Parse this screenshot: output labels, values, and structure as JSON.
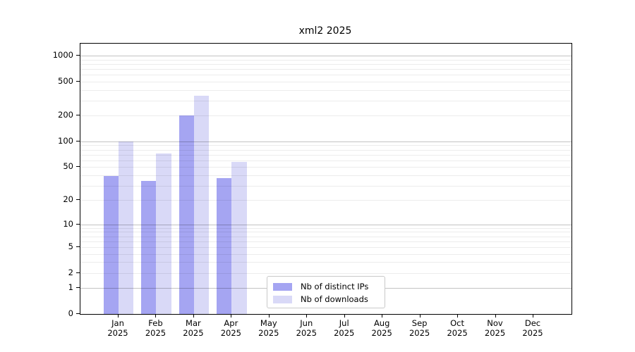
{
  "chart_data": {
    "type": "bar",
    "title": "xml2 2025",
    "year_label": "2025",
    "months": [
      "Jan",
      "Feb",
      "Mar",
      "Apr",
      "May",
      "Jun",
      "Jul",
      "Aug",
      "Sep",
      "Oct",
      "Nov",
      "Dec"
    ],
    "series": [
      {
        "name": "Nb of distinct IPs",
        "color": "#a5a5f2",
        "values": [
          39,
          34,
          200,
          37,
          0,
          0,
          0,
          0,
          0,
          0,
          0,
          0
        ]
      },
      {
        "name": "Nb of downloads",
        "color": "#d9d9f7",
        "values": [
          100,
          72,
          340,
          57,
          0,
          0,
          0,
          0,
          0,
          0,
          0,
          0
        ]
      }
    ],
    "yscale": "log1p",
    "ytick_values": [
      0,
      1,
      2,
      5,
      10,
      20,
      50,
      100,
      200,
      500,
      1000
    ],
    "ylim": [
      0,
      1380
    ],
    "grid": "horizontal",
    "grid_on_top_of_bars": true,
    "legend_position": "inside-bottom-center-left",
    "colors": {
      "distinct_ips_bar": "#a5a5f2",
      "downloads_bar": "#d9d9f7",
      "major_gridline": "#c3c3c3",
      "minor_gridline": "#ebebeb",
      "axis_line": "#000000",
      "background": "#ffffff"
    }
  }
}
